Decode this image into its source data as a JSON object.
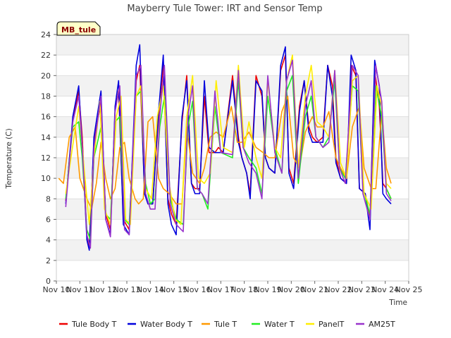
{
  "chart_data": {
    "type": "line",
    "title": "Mayberry Tule Tower: IRT and Sensor Temp",
    "xlabel": "Time",
    "ylabel": "Temperature (C)",
    "badge": "MB_tule",
    "ylim": [
      0,
      24
    ],
    "xlim": [
      10,
      25
    ],
    "yticks": [
      0,
      2,
      4,
      6,
      8,
      10,
      12,
      14,
      16,
      18,
      20,
      22,
      24
    ],
    "xticks": [
      {
        "v": 10,
        "label": "Nov 10"
      },
      {
        "v": 11,
        "label": "Nov 11"
      },
      {
        "v": 12,
        "label": "Nov 12"
      },
      {
        "v": 13,
        "label": "Nov 13"
      },
      {
        "v": 14,
        "label": "Nov 14"
      },
      {
        "v": 15,
        "label": "Nov 15"
      },
      {
        "v": 16,
        "label": "Nov 16"
      },
      {
        "v": 17,
        "label": "Nov 17"
      },
      {
        "v": 18,
        "label": "Nov 18"
      },
      {
        "v": 19,
        "label": "Nov 19"
      },
      {
        "v": 20,
        "label": "Nov 20"
      },
      {
        "v": 21,
        "label": "Nov 21"
      },
      {
        "v": 22,
        "label": "Nov 22"
      },
      {
        "v": 23,
        "label": "Nov 23"
      },
      {
        "v": 24,
        "label": "Nov 24"
      },
      {
        "v": 25,
        "label": "Nov 25"
      }
    ],
    "legend_position": "bottom",
    "series": [
      {
        "name": "Tule Body T",
        "color": "#ee0000",
        "x": [
          10.4,
          10.7,
          10.95,
          11.1,
          11.3,
          11.4,
          11.6,
          11.9,
          12.1,
          12.3,
          12.5,
          12.65,
          12.85,
          13.1,
          13.4,
          13.55,
          13.75,
          13.9,
          14.1,
          14.35,
          14.55,
          14.75,
          14.9,
          15.1,
          15.35,
          15.55,
          15.75,
          15.9,
          16.1,
          16.3,
          16.5,
          16.75,
          16.9,
          17.1,
          17.5,
          17.75,
          17.9,
          18.1,
          18.25,
          18.5,
          18.75,
          18.9,
          19.05,
          19.3,
          19.55,
          19.75,
          19.9,
          20.1,
          20.35,
          20.55,
          20.75,
          20.9,
          21.1,
          21.35,
          21.55,
          21.75,
          21.9,
          22.1,
          22.35,
          22.55,
          22.75,
          22.9,
          23.15,
          23.35,
          23.55,
          23.75,
          23.9,
          24.05,
          24.25
        ],
        "y": [
          7.8,
          15.5,
          18.5,
          14,
          4.5,
          3.4,
          13.5,
          17.5,
          6.5,
          5,
          16.5,
          18.5,
          6,
          5,
          19.5,
          21,
          9,
          7.5,
          7.5,
          16,
          21,
          8,
          6.5,
          5.5,
          15.5,
          20,
          9.5,
          9,
          9,
          18,
          12.5,
          12.5,
          13,
          12.5,
          20,
          14,
          12,
          10.5,
          8.5,
          20,
          18,
          12,
          11,
          10.5,
          20.5,
          22,
          11,
          9.5,
          17,
          19.5,
          15,
          14,
          13.5,
          14,
          21,
          19,
          12,
          10,
          9.5,
          21,
          20,
          9,
          8.5,
          6,
          20.5,
          17,
          9.5,
          9,
          8
        ]
      },
      {
        "name": "Water Body T",
        "color": "#0000dd",
        "x": [
          10.4,
          10.7,
          10.95,
          11.1,
          11.3,
          11.4,
          11.6,
          11.9,
          12.1,
          12.3,
          12.5,
          12.65,
          12.85,
          13.1,
          13.4,
          13.55,
          13.75,
          13.9,
          14.1,
          14.35,
          14.55,
          14.75,
          14.9,
          15.1,
          15.35,
          15.55,
          15.75,
          15.9,
          16.1,
          16.3,
          16.5,
          16.75,
          16.9,
          17.1,
          17.5,
          17.75,
          17.9,
          18.1,
          18.25,
          18.5,
          18.75,
          18.9,
          19.05,
          19.3,
          19.55,
          19.75,
          19.9,
          20.1,
          20.35,
          20.55,
          20.75,
          20.9,
          21.1,
          21.35,
          21.55,
          21.75,
          21.9,
          22.1,
          22.35,
          22.55,
          22.75,
          22.9,
          23.15,
          23.35,
          23.55,
          23.75,
          23.9,
          24.05,
          24.25
        ],
        "y": [
          7.5,
          16,
          19,
          13,
          4,
          3,
          14,
          18.5,
          6,
          4.5,
          17,
          19.5,
          5.5,
          4.5,
          21,
          23,
          8.5,
          7.5,
          7.5,
          16.5,
          22,
          7.5,
          5.5,
          4.5,
          16,
          19.5,
          9.5,
          8.5,
          8.5,
          19.5,
          13,
          12.5,
          12.5,
          12.5,
          19.5,
          13.5,
          12,
          10.5,
          8,
          19.5,
          18.5,
          12,
          11,
          10.5,
          21,
          22.8,
          10.5,
          9,
          16.5,
          19.5,
          14.5,
          13.5,
          13.5,
          13.5,
          21,
          18,
          11.5,
          10,
          9.5,
          22,
          20.5,
          9,
          8.5,
          5,
          21.5,
          19,
          8.5,
          8,
          7.5
        ]
      },
      {
        "name": "Tule T",
        "color": "#ff9900",
        "x": [
          10.1,
          10.3,
          10.55,
          10.8,
          11.0,
          11.3,
          11.5,
          11.7,
          11.9,
          12.1,
          12.3,
          12.5,
          12.7,
          12.9,
          13.1,
          13.35,
          13.5,
          13.7,
          13.9,
          14.1,
          14.35,
          14.55,
          14.8,
          15.1,
          15.35,
          15.55,
          15.8,
          16.1,
          16.3,
          16.55,
          16.8,
          17.1,
          17.45,
          17.7,
          17.9,
          18.2,
          18.5,
          18.8,
          19.05,
          19.3,
          19.6,
          19.85,
          20.1,
          20.35,
          20.6,
          20.9,
          21.1,
          21.35,
          21.6,
          21.9,
          22.1,
          22.35,
          22.6,
          22.9,
          23.1,
          23.4,
          23.6,
          23.85,
          24.05,
          24.25
        ],
        "y": [
          10,
          9.5,
          14,
          15,
          10,
          8,
          7,
          9.5,
          13.5,
          10,
          8,
          9,
          13,
          13.5,
          10,
          8,
          7.5,
          8,
          15.5,
          16,
          10,
          9,
          8.5,
          7.5,
          7.5,
          15,
          10.5,
          9.5,
          11,
          14,
          14.5,
          14,
          17,
          13.5,
          13.5,
          14.5,
          13,
          12.5,
          12,
          12,
          16.5,
          18,
          12,
          11,
          14.5,
          16,
          15,
          15,
          16.5,
          12,
          11,
          10,
          15,
          17,
          11,
          9,
          9,
          16.5,
          11,
          9.5
        ]
      },
      {
        "name": "Water T",
        "color": "#22ee22",
        "x": [
          10.4,
          10.7,
          10.95,
          11.1,
          11.3,
          11.45,
          11.6,
          11.9,
          12.1,
          12.3,
          12.5,
          12.7,
          12.9,
          13.1,
          13.4,
          13.6,
          13.8,
          14.0,
          14.2,
          14.4,
          14.6,
          14.85,
          15.1,
          15.4,
          15.6,
          15.8,
          16.0,
          16.2,
          16.45,
          16.75,
          17.0,
          17.5,
          17.75,
          17.95,
          18.2,
          18.5,
          18.75,
          19.0,
          19.3,
          19.6,
          19.8,
          20.05,
          20.3,
          20.6,
          20.85,
          21.05,
          21.35,
          21.6,
          21.85,
          22.05,
          22.3,
          22.6,
          22.85,
          23.05,
          23.35,
          23.6,
          23.85,
          24.05,
          24.25
        ],
        "y": [
          8,
          15,
          15.5,
          12,
          5,
          4,
          12,
          15,
          6.5,
          6,
          15.5,
          16,
          6,
          5.5,
          18,
          18.5,
          9.5,
          7.5,
          8,
          15,
          18,
          8,
          6,
          5.5,
          15,
          17.5,
          9,
          8.5,
          7,
          17,
          12.5,
          12,
          19.5,
          13,
          12,
          11,
          8.5,
          18,
          13,
          10.5,
          18.5,
          20,
          9.5,
          16,
          18,
          14,
          13,
          14,
          19.5,
          11,
          10,
          19,
          18.5,
          9,
          6.5,
          19,
          16,
          9,
          8
        ]
      },
      {
        "name": "PanelT",
        "color": "#ffee00",
        "x": [
          10.4,
          10.75,
          10.95,
          11.2,
          11.4,
          11.6,
          11.85,
          12.05,
          12.3,
          12.55,
          12.75,
          12.95,
          13.15,
          13.4,
          13.6,
          13.8,
          14.05,
          14.3,
          14.55,
          14.8,
          15.05,
          15.3,
          15.55,
          15.8,
          16.05,
          16.3,
          16.55,
          16.8,
          17.1,
          17.5,
          17.75,
          18.0,
          18.2,
          18.5,
          18.75,
          19.0,
          19.3,
          19.55,
          19.8,
          20.05,
          20.3,
          20.6,
          20.85,
          21.1,
          21.35,
          21.6,
          21.85,
          22.1,
          22.35,
          22.6,
          22.85,
          23.1,
          23.4,
          23.65,
          23.85,
          24.05,
          24.25
        ],
        "y": [
          8.5,
          14,
          17,
          10.5,
          5.5,
          12,
          17.5,
          7,
          5.5,
          16,
          18,
          6,
          5.5,
          18,
          19,
          9,
          8,
          16,
          19,
          9.5,
          6,
          5.5,
          16,
          20,
          10,
          9.5,
          10.5,
          19.5,
          13,
          12.5,
          21,
          13,
          15.5,
          12,
          10,
          19.5,
          13,
          12,
          19.5,
          22,
          11,
          18,
          21,
          15.5,
          15,
          14,
          20.5,
          11.5,
          10,
          19.5,
          20,
          8.5,
          7,
          19,
          17,
          9.5,
          9
        ]
      },
      {
        "name": "AM25T",
        "color": "#9933cc",
        "x": [
          10.4,
          10.7,
          10.95,
          11.1,
          11.3,
          11.45,
          11.6,
          11.9,
          12.1,
          12.3,
          12.5,
          12.7,
          12.9,
          13.1,
          13.4,
          13.6,
          13.8,
          14.0,
          14.2,
          14.4,
          14.6,
          14.85,
          15.1,
          15.4,
          15.6,
          15.8,
          16.0,
          16.2,
          16.45,
          16.75,
          17.0,
          17.5,
          17.75,
          17.95,
          18.2,
          18.5,
          18.75,
          19.0,
          19.3,
          19.6,
          19.8,
          20.05,
          20.3,
          20.6,
          20.85,
          21.05,
          21.35,
          21.6,
          21.85,
          22.05,
          22.3,
          22.6,
          22.85,
          23.05,
          23.35,
          23.6,
          23.85,
          24.05,
          24.25
        ],
        "y": [
          7.2,
          15.5,
          18,
          13,
          4.5,
          3.2,
          13,
          18,
          6,
          4.3,
          16.5,
          19,
          5,
          4.5,
          20,
          21,
          8.5,
          7,
          7,
          16,
          21,
          7.5,
          5.5,
          4.8,
          16,
          19,
          9,
          8.5,
          7.5,
          18.5,
          12.5,
          12.3,
          20.5,
          13,
          11.5,
          10.5,
          8,
          20,
          12.5,
          10.5,
          19.5,
          21.5,
          10,
          17,
          19.5,
          14,
          13,
          13.5,
          20.5,
          11,
          9.5,
          21,
          20,
          8.5,
          6,
          21,
          17.5,
          8.5,
          7.8
        ]
      }
    ]
  }
}
